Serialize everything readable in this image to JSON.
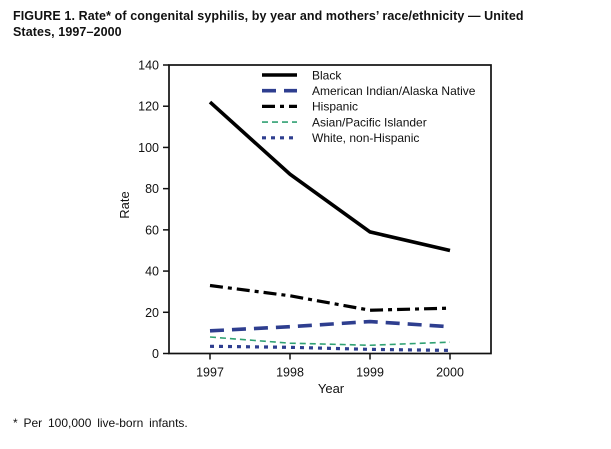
{
  "figure": {
    "title_line1": "FIGURE 1. Rate* of congenital syphilis, by year and mothers’ race/ethnicity — United",
    "title_line2": "States, 1997–2000",
    "footnote": "* Per 100,000 live-born infants."
  },
  "chart_data": {
    "type": "line",
    "title": "Rate of congenital syphilis, by year and mothers' race/ethnicity, United States, 1997-2000",
    "xlabel": "Year",
    "ylabel": "Rate",
    "x": [
      1997,
      1998,
      1999,
      2000
    ],
    "ylim": [
      0,
      140
    ],
    "yticks": [
      0,
      20,
      40,
      60,
      80,
      100,
      120,
      140
    ],
    "grid": false,
    "legend_position": "top-inside",
    "series": [
      {
        "name": "Black",
        "color": "#000000",
        "line_style": "solid",
        "line_width": 3.6,
        "values": [
          122,
          87,
          59,
          50
        ]
      },
      {
        "name": "American Indian/Alaska Native",
        "color": "#2e3e8f",
        "line_style": "dashed",
        "line_width": 3.6,
        "values": [
          11,
          13,
          15.5,
          13
        ]
      },
      {
        "name": "Hispanic",
        "color": "#000000",
        "line_style": "dash-dot",
        "line_width": 3.2,
        "values": [
          33,
          28,
          21,
          22
        ]
      },
      {
        "name": "Asian/Pacific Islander",
        "color": "#30a173",
        "line_style": "fine-dash",
        "line_width": 1.6,
        "values": [
          8,
          5,
          4,
          5.5
        ]
      },
      {
        "name": "White, non-Hispanic",
        "color": "#2e3e8f",
        "line_style": "dotted",
        "line_width": 3.2,
        "values": [
          3.5,
          3,
          2,
          1.5
        ]
      }
    ]
  }
}
